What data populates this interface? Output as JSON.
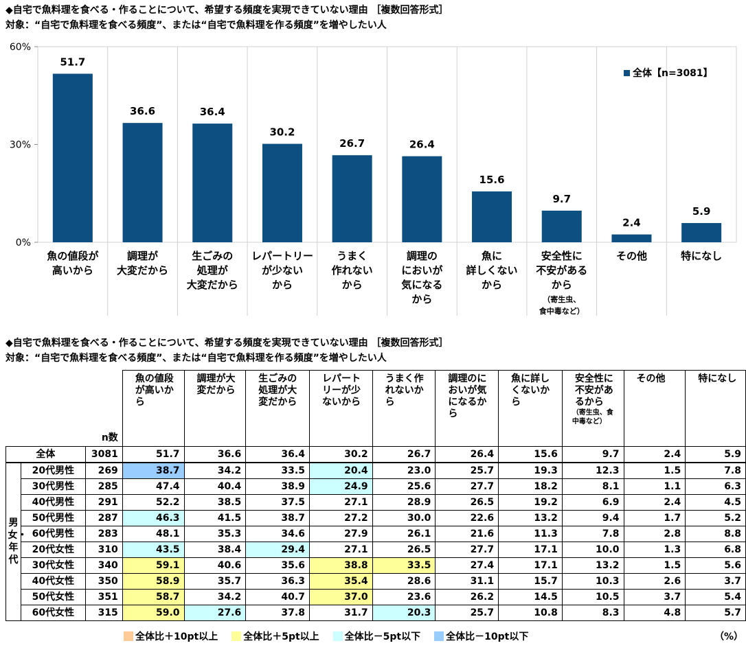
{
  "chart_title": "◆自宅で魚料理を食べる・作ることについて、希望する頻度を実現できていない理由 ［複数回答形式］",
  "chart_subtitle": "対象：“自宅で魚料理を食べる頻度”、または“自宅で魚料理を作る頻度”を増やしたい人",
  "table_title": "◆自宅で魚料理を食べる・作ることについて、希望する頻度を実現できていない理由 ［複数回答形式］",
  "table_subtitle": "対象：“自宅で魚料理を食べる頻度”、または“自宅で魚料理を作る頻度”を増やしたい人",
  "chart_data": {
    "type": "bar",
    "categories": [
      [
        "魚の値段が",
        "高いから"
      ],
      [
        "調理が",
        "大変だから"
      ],
      [
        "生ごみの",
        "処理が",
        "大変だから"
      ],
      [
        "レパートリー",
        "が少ない",
        "から"
      ],
      [
        "うまく",
        "作れない",
        "から"
      ],
      [
        "調理の",
        "においが",
        "気になる",
        "から"
      ],
      [
        "魚に",
        "詳しくない",
        "から"
      ],
      [
        "安全性に",
        "不安がある",
        "から"
      ],
      [
        "その他"
      ],
      [
        "特になし"
      ]
    ],
    "category_notes": [
      "",
      "",
      "",
      "",
      "",
      "",
      "",
      "（寄生虫、食中毒など）",
      "",
      ""
    ],
    "series": [
      {
        "name": "全体【n=3081】",
        "values": [
          51.7,
          36.6,
          36.4,
          30.2,
          26.7,
          26.4,
          15.6,
          9.7,
          2.4,
          5.9
        ]
      }
    ],
    "y_ticks": [
      "0%",
      "30%",
      "60%"
    ],
    "ylim": [
      0,
      60
    ],
    "legend_position": "top-right",
    "bar_color": "#0d4f80"
  },
  "table": {
    "n_label": "n数",
    "group_label": "男女・年代",
    "columns": [
      {
        "label": "魚の値段が高いから",
        "note": ""
      },
      {
        "label": "調理が大変だから",
        "note": ""
      },
      {
        "label": "生ごみの処理が大変だから",
        "note": ""
      },
      {
        "label": "レパートリーが少ないから",
        "note": ""
      },
      {
        "label": "うまく作れないから",
        "note": ""
      },
      {
        "label": "調理のにおいが気になるから",
        "note": ""
      },
      {
        "label": "魚に詳しくないから",
        "note": ""
      },
      {
        "label": "安全性に不安があるから",
        "note": "（寄生虫、食中毒など）"
      },
      {
        "label": "その他",
        "note": ""
      },
      {
        "label": "特になし",
        "note": ""
      }
    ],
    "total": {
      "label": "全体",
      "n": "3081",
      "values": [
        "51.7",
        "36.6",
        "36.4",
        "30.2",
        "26.7",
        "26.4",
        "15.6",
        "9.7",
        "2.4",
        "5.9"
      ]
    },
    "rows": [
      {
        "label": "20代男性",
        "n": "269",
        "values": [
          "38.7",
          "34.2",
          "33.5",
          "20.4",
          "23.0",
          "25.7",
          "19.3",
          "12.3",
          "1.5",
          "7.8"
        ],
        "hl": [
          "b",
          "",
          "",
          "c",
          "",
          "",
          "",
          "",
          "",
          ""
        ]
      },
      {
        "label": "30代男性",
        "n": "285",
        "values": [
          "47.4",
          "40.4",
          "38.9",
          "24.9",
          "25.6",
          "27.7",
          "18.2",
          "8.1",
          "1.1",
          "6.3"
        ],
        "hl": [
          "",
          "",
          "",
          "c",
          "",
          "",
          "",
          "",
          "",
          ""
        ]
      },
      {
        "label": "40代男性",
        "n": "291",
        "values": [
          "52.2",
          "38.5",
          "37.5",
          "27.1",
          "28.9",
          "26.5",
          "19.2",
          "6.9",
          "2.4",
          "4.5"
        ],
        "hl": [
          "",
          "",
          "",
          "",
          "",
          "",
          "",
          "",
          "",
          ""
        ]
      },
      {
        "label": "50代男性",
        "n": "287",
        "values": [
          "46.3",
          "41.5",
          "38.7",
          "27.2",
          "30.0",
          "22.6",
          "13.2",
          "9.4",
          "1.7",
          "5.2"
        ],
        "hl": [
          "c",
          "",
          "",
          "",
          "",
          "",
          "",
          "",
          "",
          ""
        ]
      },
      {
        "label": "60代男性",
        "n": "283",
        "values": [
          "48.1",
          "35.3",
          "34.6",
          "27.9",
          "26.1",
          "21.6",
          "11.3",
          "7.8",
          "2.8",
          "8.8"
        ],
        "hl": [
          "",
          "",
          "",
          "",
          "",
          "",
          "",
          "",
          "",
          ""
        ]
      },
      {
        "label": "20代女性",
        "n": "310",
        "values": [
          "43.5",
          "38.4",
          "29.4",
          "27.1",
          "26.5",
          "27.7",
          "17.1",
          "10.0",
          "1.3",
          "6.8"
        ],
        "hl": [
          "c",
          "",
          "c",
          "",
          "",
          "",
          "",
          "",
          "",
          ""
        ]
      },
      {
        "label": "30代女性",
        "n": "340",
        "values": [
          "59.1",
          "40.6",
          "35.6",
          "38.8",
          "33.5",
          "27.4",
          "17.1",
          "13.2",
          "1.5",
          "5.6"
        ],
        "hl": [
          "y",
          "",
          "",
          "y",
          "y",
          "",
          "",
          "",
          "",
          ""
        ]
      },
      {
        "label": "40代女性",
        "n": "350",
        "values": [
          "58.9",
          "35.7",
          "36.3",
          "35.4",
          "28.6",
          "31.1",
          "15.7",
          "10.3",
          "2.6",
          "3.7"
        ],
        "hl": [
          "y",
          "",
          "",
          "y",
          "",
          "",
          "",
          "",
          "",
          ""
        ]
      },
      {
        "label": "50代女性",
        "n": "351",
        "values": [
          "58.7",
          "34.2",
          "40.7",
          "37.0",
          "23.6",
          "26.2",
          "14.5",
          "10.5",
          "3.7",
          "5.4"
        ],
        "hl": [
          "y",
          "",
          "",
          "y",
          "",
          "",
          "",
          "",
          "",
          ""
        ]
      },
      {
        "label": "60代女性",
        "n": "315",
        "values": [
          "59.0",
          "27.6",
          "37.8",
          "31.7",
          "20.3",
          "25.7",
          "10.8",
          "8.3",
          "4.8",
          "5.7"
        ],
        "hl": [
          "y",
          "c",
          "",
          "",
          "c",
          "",
          "",
          "",
          "",
          ""
        ]
      }
    ]
  },
  "legend": [
    {
      "label": "全体比＋10pt以上",
      "color": "#ffcc99"
    },
    {
      "label": "全体比＋5pt以上",
      "color": "#ffff99"
    },
    {
      "label": "全体比－5pt以下",
      "color": "#ccffff"
    },
    {
      "label": "全体比－10pt以下",
      "color": "#99ccff"
    }
  ],
  "unit": "（%）"
}
